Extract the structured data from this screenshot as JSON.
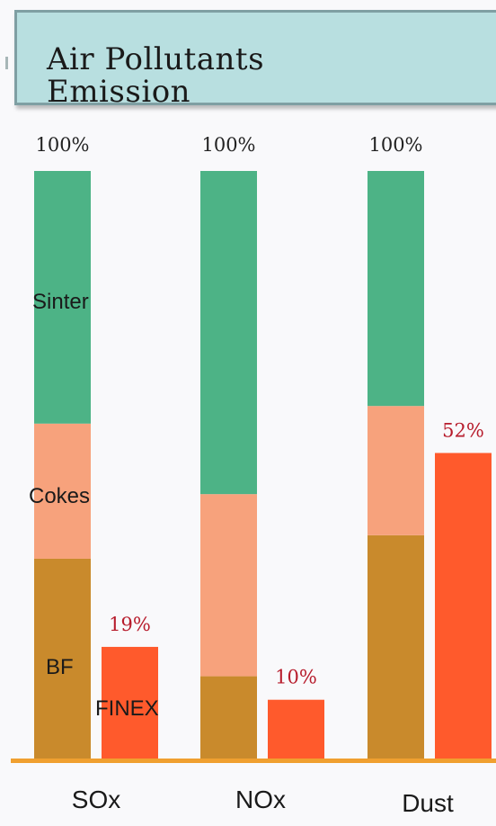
{
  "title": "Air Pollutants Emission",
  "colors": {
    "sinter": "#4db386",
    "cokes": "#f7a27c",
    "bf": "#c98a2c",
    "finex": "#ff5a2c",
    "baseline": "#f0a030",
    "total_label": "#222222",
    "finex_label": "#b71c2c"
  },
  "chart_data": {
    "type": "bar",
    "title": "Air Pollutants Emission",
    "categories": [
      "SOx",
      "NOx",
      "Dust"
    ],
    "ylim": [
      0,
      100
    ],
    "unit": "%",
    "stacked_series": [
      {
        "name": "BF",
        "values": [
          34,
          14,
          38
        ]
      },
      {
        "name": "Cokes",
        "values": [
          23,
          31,
          22
        ]
      },
      {
        "name": "Sinter",
        "values": [
          43,
          55,
          40
        ]
      }
    ],
    "stack_totals": [
      100,
      100,
      100
    ],
    "stack_total_labels": [
      "100%",
      "100%",
      "100%"
    ],
    "comparison_series": {
      "name": "FINEX",
      "values": [
        19,
        10,
        52
      ]
    },
    "comparison_labels": [
      "19%",
      "10%",
      "52%"
    ],
    "segment_labels": [
      "Sinter",
      "Cokes",
      "BF",
      "FINEX"
    ],
    "grid": false,
    "legend": "none"
  }
}
